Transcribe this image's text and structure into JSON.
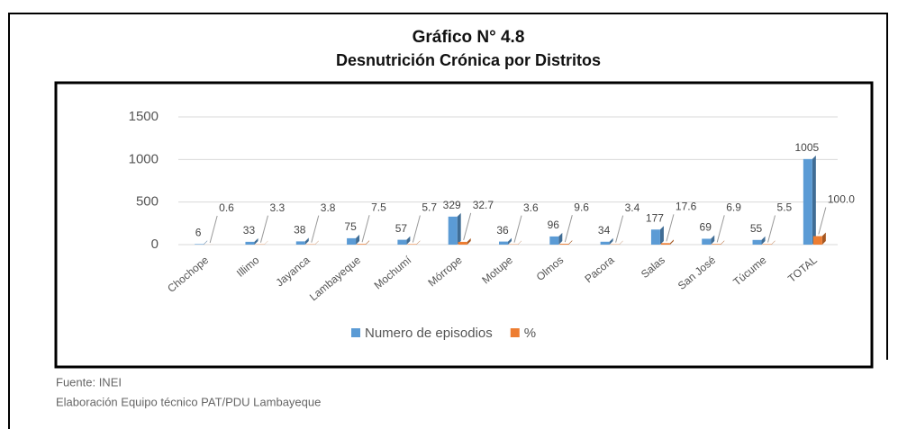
{
  "chart_data": {
    "type": "bar",
    "title": "Gráfico N° 4.8",
    "subtitle": "Desnutrición Crónica por Distritos",
    "categories": [
      "Chochope",
      "Illimo",
      "Jayanca",
      "Lambayeque",
      "Mochumí",
      "Mórrope",
      "Motupe",
      "Olmos",
      "Pacora",
      "Salas",
      "San José",
      "Túcume",
      "TOTAL"
    ],
    "series": [
      {
        "name": "Numero de episodios",
        "color": "#5b9bd5",
        "values": [
          6,
          33,
          38,
          75,
          57,
          329,
          36,
          96,
          34,
          177,
          69,
          55,
          1005
        ]
      },
      {
        "name": "%",
        "color": "#ed7d31",
        "values": [
          0.6,
          3.3,
          3.8,
          7.5,
          5.7,
          32.7,
          3.6,
          9.6,
          3.4,
          17.6,
          6.9,
          5.5,
          100.0
        ],
        "value_labels": [
          "0.6",
          "3.3",
          "3.8",
          "7.5",
          "5.7",
          "32.7",
          "3.6",
          "9.6",
          "3.4",
          "17.6",
          "6.9",
          "5.5",
          "100.0"
        ]
      }
    ],
    "ylim": [
      0,
      1500
    ],
    "yticks": [
      0,
      500,
      1000,
      1500
    ],
    "grid": true,
    "legend": "bottom",
    "notes": [
      "Fuente: INEI",
      "Elaboración Equipo técnico PAT/PDU Lambayeque"
    ]
  }
}
